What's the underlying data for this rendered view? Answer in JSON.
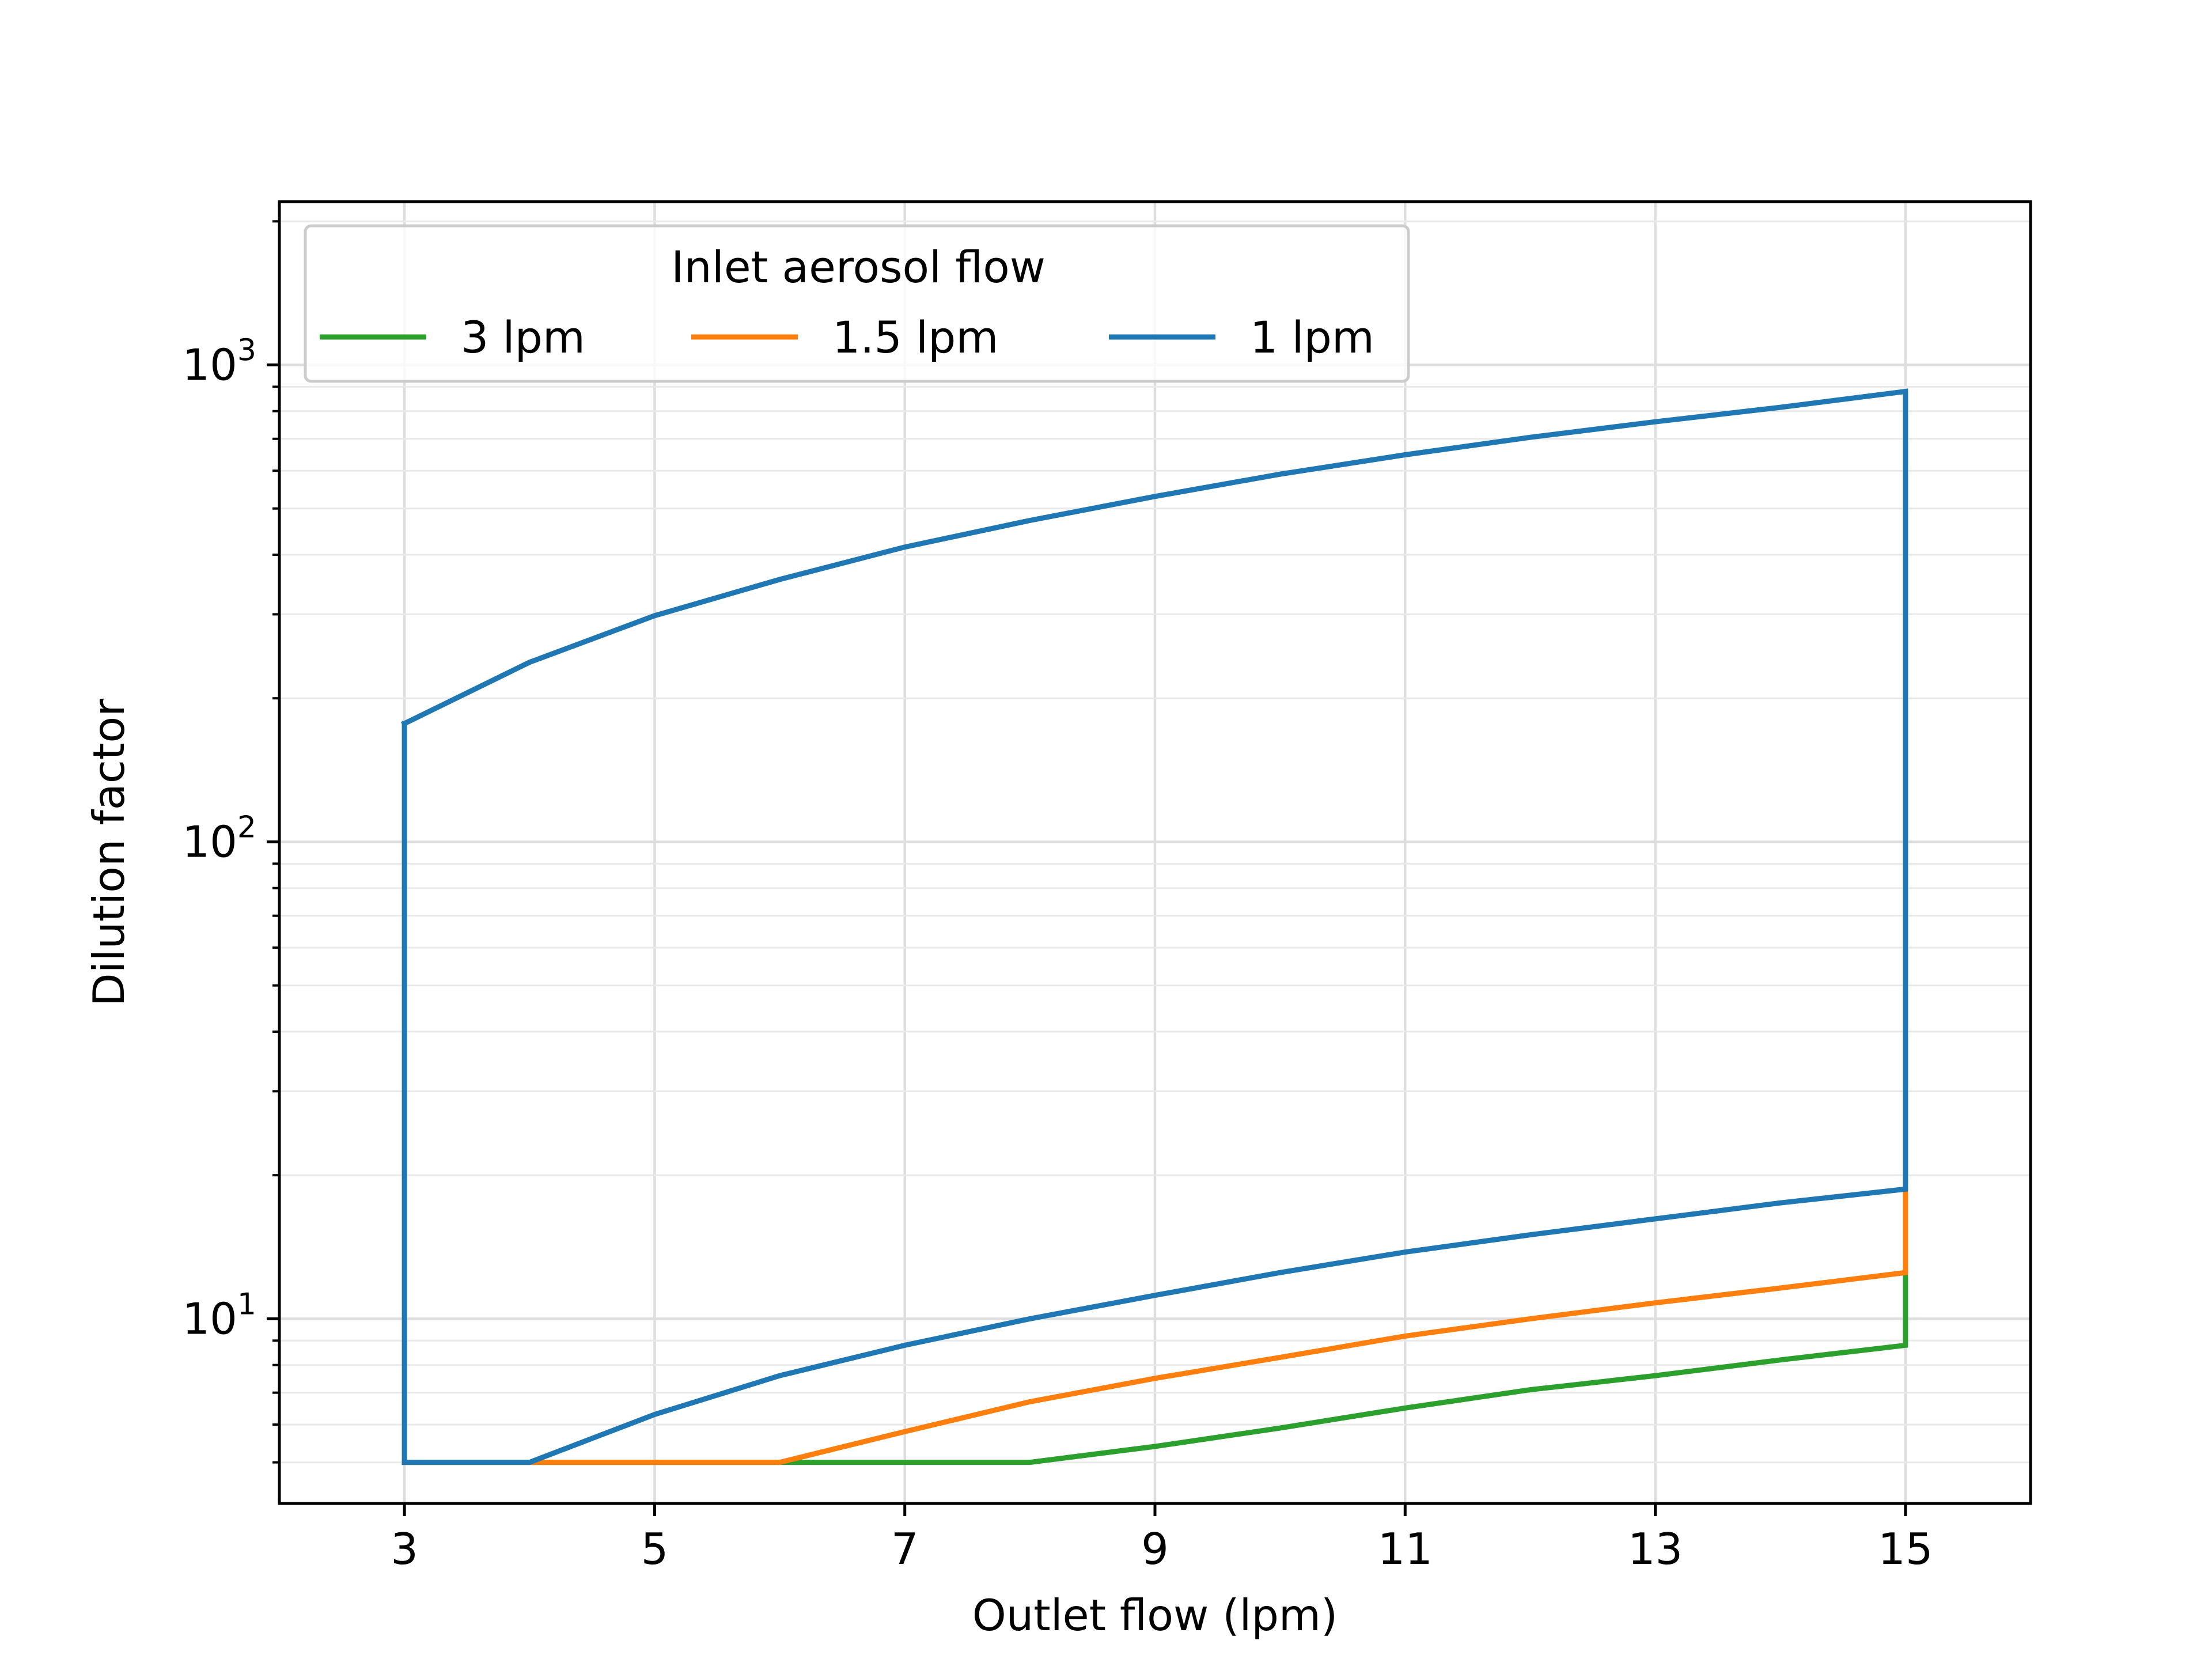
{
  "chart_data": {
    "type": "line",
    "title": "",
    "xlabel": "Outlet flow (lpm)",
    "ylabel": "Dilution factor",
    "xlim": [
      2,
      16
    ],
    "ylim": [
      4.1,
      2200
    ],
    "yscale": "log",
    "grid": true,
    "xticks": [
      3,
      5,
      7,
      9,
      11,
      13,
      15
    ],
    "xtick_labels": [
      "3",
      "5",
      "7",
      "9",
      "11",
      "13",
      "15"
    ],
    "yticks": [
      10,
      100,
      1000
    ],
    "ytick_labels": [
      {
        "base": "10",
        "exp": "1"
      },
      {
        "base": "10",
        "exp": "2"
      },
      {
        "base": "10",
        "exp": "3"
      }
    ],
    "legend": {
      "title": "Inlet aerosol flow",
      "position": "top-left",
      "ncol": 3
    },
    "series": [
      {
        "name": "3 lpm",
        "color": "#2ca02c",
        "points": [
          [
            3,
            5
          ],
          [
            4,
            5
          ],
          [
            5,
            5
          ],
          [
            6,
            5
          ],
          [
            7,
            5
          ],
          [
            8,
            5
          ],
          [
            9,
            5.4
          ],
          [
            10,
            5.9
          ],
          [
            11,
            6.5
          ],
          [
            12,
            7.1
          ],
          [
            13,
            7.6
          ],
          [
            14,
            8.2
          ],
          [
            15,
            8.8
          ],
          [
            15,
            12.5
          ]
        ]
      },
      {
        "name": "1.5 lpm",
        "color": "#ff7f0e",
        "points": [
          [
            3,
            5
          ],
          [
            4,
            5
          ],
          [
            5,
            5
          ],
          [
            6,
            5
          ],
          [
            7,
            5.8
          ],
          [
            8,
            6.7
          ],
          [
            9,
            7.5
          ],
          [
            10,
            8.3
          ],
          [
            11,
            9.2
          ],
          [
            12,
            10
          ],
          [
            13,
            10.8
          ],
          [
            14,
            11.6
          ],
          [
            15,
            12.5
          ],
          [
            15,
            18.7
          ]
        ]
      },
      {
        "name": "1 lpm",
        "color": "#1f77b4",
        "points": [
          [
            3,
            177
          ],
          [
            4,
            238
          ],
          [
            5,
            298
          ],
          [
            6,
            355
          ],
          [
            7,
            415
          ],
          [
            8,
            472
          ],
          [
            9,
            530
          ],
          [
            10,
            590
          ],
          [
            11,
            648
          ],
          [
            12,
            705
          ],
          [
            13,
            760
          ],
          [
            14,
            815
          ],
          [
            15,
            880
          ],
          [
            15,
            18.7
          ],
          [
            14,
            17.5
          ],
          [
            13,
            16.2
          ],
          [
            12,
            15
          ],
          [
            11,
            13.8
          ],
          [
            10,
            12.5
          ],
          [
            9,
            11.2
          ],
          [
            8,
            10
          ],
          [
            7,
            8.8
          ],
          [
            6,
            7.6
          ],
          [
            5,
            6.3
          ],
          [
            4,
            5
          ],
          [
            3,
            5
          ],
          [
            3,
            177
          ]
        ]
      }
    ]
  }
}
